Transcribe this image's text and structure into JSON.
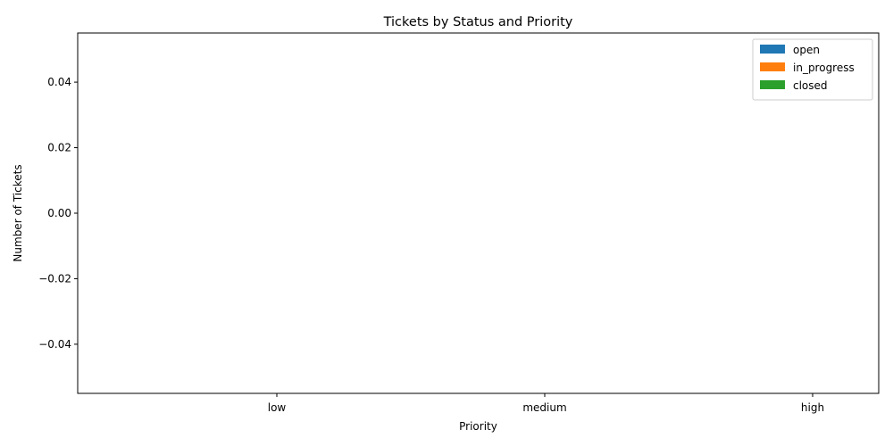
{
  "chart_data": {
    "type": "bar",
    "title": "Tickets by Status and Priority",
    "xlabel": "Priority",
    "ylabel": "Number of Tickets",
    "categories": [
      "low",
      "medium",
      "high"
    ],
    "series": [
      {
        "name": "open",
        "values": [
          0,
          0,
          0
        ],
        "color": "#1f77b4"
      },
      {
        "name": "in_progress",
        "values": [
          0,
          0,
          0
        ],
        "color": "#ff7f0e"
      },
      {
        "name": "closed",
        "values": [
          0,
          0,
          0
        ],
        "color": "#2ca02c"
      }
    ],
    "ylim": [
      -0.055,
      0.055
    ],
    "yticks": [
      -0.04,
      -0.02,
      0.0,
      0.02,
      0.04
    ],
    "ytick_labels": [
      "−0.04",
      "−0.02",
      "0.00",
      "0.02",
      "0.04"
    ],
    "grid": false,
    "legend": "top-right"
  }
}
